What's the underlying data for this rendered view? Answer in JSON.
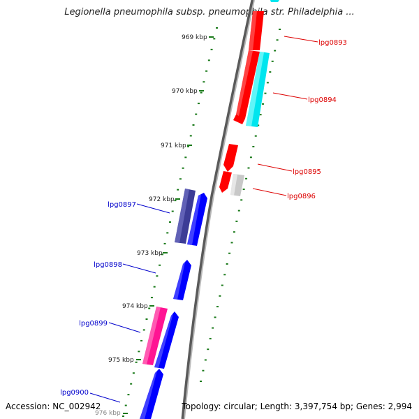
{
  "title": "Legionella pneumophila subsp. pneumophila str. Philadelphia ...",
  "footer": {
    "accession": "Accession: NC_002942",
    "summary": "Topology: circular; Length: 3,397,754 bp; Genes: 2,994"
  },
  "colors": {
    "backbone": "#7a7a7a",
    "tick": "#1a7a1a",
    "forward_label": "#0000cc",
    "reverse_label": "#dd0000",
    "red_gene": "#ff0000",
    "cyan_gene": "#00e5ee",
    "blue_gene": "#0000ff",
    "navy_gene": "#3c3c96",
    "pink_gene": "#ff1493",
    "gray_gene": "#bdbdbd"
  },
  "kbp_labels": [
    "969 kbp",
    "970 kbp",
    "971 kbp",
    "972 kbp",
    "973 kbp",
    "974 kbp",
    "975 kbp",
    "976 kbp"
  ],
  "genes": [
    {
      "id": "top-cyan",
      "label": "",
      "color": "cyan_gene"
    },
    {
      "id": "top-red",
      "label": "",
      "color": "red_gene"
    },
    {
      "id": "lpg0893",
      "label": "lpg0893",
      "color": "red_gene"
    },
    {
      "id": "lpg0894",
      "label": "lpg0894",
      "color": "cyan_gene"
    },
    {
      "id": "lpg0895",
      "label": "lpg0895",
      "color": "red_gene"
    },
    {
      "id": "lpg0896-red",
      "label": "",
      "color": "red_gene"
    },
    {
      "id": "lpg0896",
      "label": "lpg0896",
      "color": "gray_gene"
    },
    {
      "id": "lpg0897-navy",
      "label": "",
      "color": "navy_gene"
    },
    {
      "id": "lpg0897",
      "label": "lpg0897",
      "color": "blue_gene"
    },
    {
      "id": "lpg0898",
      "label": "lpg0898",
      "color": "blue_gene"
    },
    {
      "id": "lpg0899-pink",
      "label": "",
      "color": "pink_gene"
    },
    {
      "id": "lpg0899",
      "label": "lpg0899",
      "color": "blue_gene"
    },
    {
      "id": "lpg0900",
      "label": "lpg0900",
      "color": "blue_gene"
    }
  ]
}
